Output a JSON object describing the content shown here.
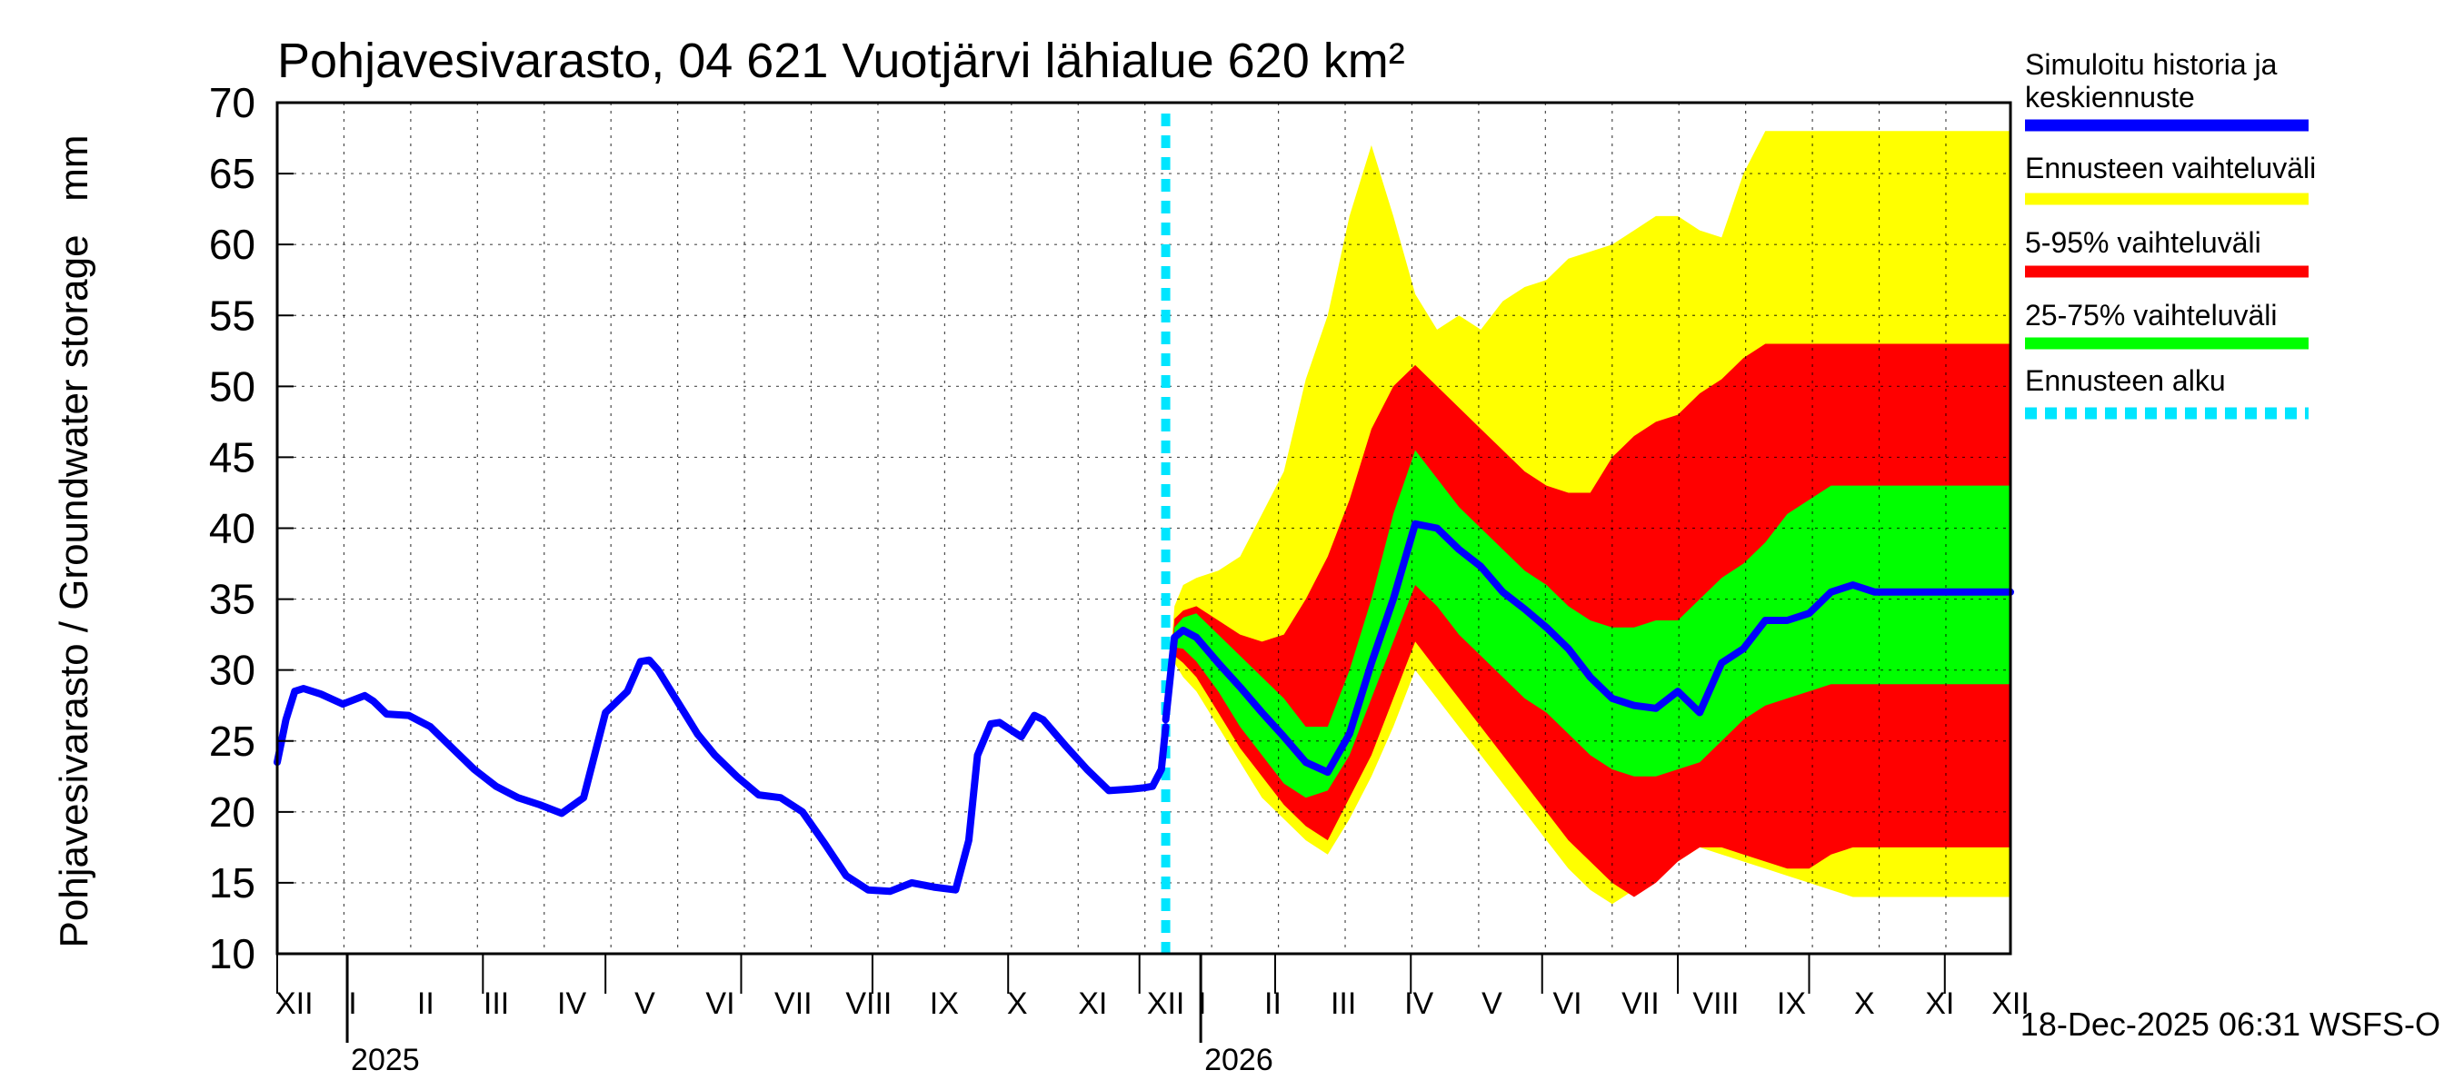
{
  "chart_data": {
    "type": "area",
    "title": "Pohjavesivarasto, 04 621 Vuotjärvi lähialue 620 km²",
    "ylabel": "Pohjavesivarasto / Groundwater storage   mm",
    "ylim": [
      10,
      70
    ],
    "yticks": [
      10,
      15,
      20,
      25,
      30,
      35,
      40,
      45,
      50,
      55,
      60,
      65,
      70
    ],
    "x_range_days": [
      0,
      396
    ],
    "month_labels": [
      "XII",
      "I",
      "II",
      "III",
      "IV",
      "V",
      "VI",
      "VII",
      "VIII",
      "IX",
      "X",
      "XI",
      "XII",
      "I",
      "II",
      "III",
      "IV",
      "V",
      "VI",
      "VII",
      "VIII",
      "IX",
      "X",
      "XI",
      "XII"
    ],
    "month_starts_days": [
      0,
      16,
      47,
      75,
      106,
      136,
      167,
      197,
      228,
      259,
      289,
      320,
      350,
      381
    ],
    "month_label_days": [
      7,
      31,
      61,
      90,
      121,
      151,
      182,
      212,
      243,
      274,
      304,
      335,
      365,
      380,
      409,
      438,
      469,
      499,
      530,
      560,
      591,
      622,
      652,
      683,
      712
    ],
    "year_labels": [
      {
        "text": "2025",
        "day": 16
      },
      {
        "text": "2026",
        "day": 211
      }
    ],
    "forecast_start_day": 203,
    "simulated_history": {
      "days": [
        0,
        2,
        4,
        6,
        8,
        10,
        15,
        20,
        22,
        25,
        30,
        35,
        40,
        45,
        50,
        55,
        60,
        65,
        70,
        75,
        80,
        83,
        85,
        87,
        90,
        93,
        96,
        100,
        105,
        110,
        115,
        120,
        125,
        130,
        135,
        140,
        145,
        150,
        155,
        158,
        160,
        163,
        165,
        167,
        170,
        173,
        175,
        180,
        185,
        190,
        195,
        198,
        200,
        202,
        203
      ],
      "values": [
        23.5,
        26.5,
        28.5,
        28.7,
        28.5,
        28.3,
        27.6,
        28.2,
        27.8,
        26.9,
        26.8,
        26.0,
        24.5,
        23.0,
        21.8,
        21.0,
        20.5,
        19.9,
        21.0,
        27.0,
        28.5,
        30.6,
        30.7,
        30.0,
        28.5,
        27.0,
        25.5,
        24.0,
        22.5,
        21.2,
        21.0,
        20.0,
        17.8,
        15.5,
        14.5,
        14.4,
        15.0,
        14.7,
        14.5,
        18.0,
        24.0,
        26.2,
        26.3,
        25.9,
        25.3,
        26.8,
        26.5,
        24.7,
        23.0,
        21.5,
        21.6,
        21.7,
        21.8,
        23.0,
        26.0
      ]
    },
    "forecast": {
      "days": [
        203,
        205,
        207,
        210,
        215,
        220,
        225,
        230,
        235,
        240,
        245,
        250,
        255,
        260,
        265,
        270,
        275,
        280,
        285,
        290,
        295,
        300,
        305,
        310,
        315,
        320,
        325,
        330,
        335,
        340,
        345,
        350,
        355,
        360,
        365,
        370,
        375,
        380,
        385,
        390,
        396
      ],
      "median": [
        26.5,
        32.3,
        32.8,
        32.3,
        30.5,
        28.8,
        27.0,
        25.3,
        23.5,
        22.8,
        25.5,
        30.5,
        35.0,
        40.3,
        40.0,
        38.5,
        37.3,
        35.5,
        34.3,
        33.0,
        31.5,
        29.5,
        28.0,
        27.5,
        27.3,
        28.5,
        27.0,
        30.5,
        31.5,
        33.5,
        33.5,
        34.0,
        35.5,
        36.0,
        35.5,
        35.5,
        35.5,
        35.5,
        35.5,
        35.5,
        35.5
      ],
      "p25": [
        26.5,
        31.6,
        31.5,
        30.6,
        28.5,
        26.0,
        24.0,
        22.0,
        21.0,
        21.5,
        24.0,
        28.0,
        32.0,
        36.0,
        34.5,
        32.5,
        31.0,
        29.5,
        28.0,
        27.0,
        25.5,
        24.0,
        23.0,
        22.5,
        22.5,
        23.0,
        23.5,
        25.0,
        26.5,
        27.5,
        28.0,
        28.5,
        29.0,
        29.0,
        29.0,
        29.0,
        29.0,
        29.0,
        29.0,
        29.0,
        29.0
      ],
      "p75": [
        26.5,
        33.0,
        33.7,
        34.0,
        32.5,
        31.0,
        29.5,
        28.0,
        26.0,
        26.0,
        30.0,
        35.0,
        41.0,
        45.5,
        43.5,
        41.5,
        40.0,
        38.5,
        37.0,
        36.0,
        34.5,
        33.5,
        33.0,
        33.0,
        33.5,
        33.5,
        35.0,
        36.5,
        37.5,
        39.0,
        41.0,
        42.0,
        43.0,
        43.0,
        43.0,
        43.0,
        43.0,
        43.0,
        43.0,
        43.0,
        43.0
      ],
      "p5": [
        26.5,
        31.0,
        30.5,
        29.5,
        27.0,
        24.5,
        22.5,
        20.5,
        19.0,
        18.0,
        21.0,
        24.0,
        28.0,
        32.0,
        30.0,
        28.0,
        26.0,
        24.0,
        22.0,
        20.0,
        18.0,
        16.5,
        15.0,
        14.0,
        15.0,
        16.5,
        17.5,
        17.5,
        17.0,
        16.5,
        16.0,
        16.0,
        17.0,
        17.5,
        17.5,
        17.5,
        17.5,
        17.5,
        17.5,
        17.5,
        17.5
      ],
      "p95": [
        26.5,
        33.6,
        34.2,
        34.5,
        33.5,
        32.5,
        32.0,
        32.5,
        35.0,
        38.0,
        42.0,
        47.0,
        50.0,
        51.5,
        50.0,
        48.5,
        47.0,
        45.5,
        44.0,
        43.0,
        42.5,
        42.5,
        45.0,
        46.5,
        47.5,
        48.0,
        49.5,
        50.5,
        52.0,
        53.0,
        53.0,
        53.0,
        53.0,
        53.0,
        53.0,
        53.0,
        53.0,
        53.0,
        53.0,
        53.0,
        53.0
      ],
      "min": [
        26.5,
        30.5,
        29.5,
        28.5,
        26.0,
        23.5,
        21.0,
        19.5,
        18.0,
        17.0,
        19.5,
        22.5,
        26.0,
        30.0,
        28.0,
        26.0,
        24.0,
        22.0,
        20.0,
        18.0,
        16.0,
        14.5,
        13.5,
        14.5,
        15.5,
        16.5,
        17.5,
        17.0,
        16.5,
        16.0,
        15.5,
        15.0,
        14.5,
        14.0,
        14.0,
        14.0,
        14.0,
        14.0,
        14.0,
        14.0,
        14.0
      ],
      "max": [
        26.5,
        34.5,
        36.0,
        36.5,
        37.0,
        38.0,
        41.0,
        44.0,
        50.5,
        55.0,
        62.0,
        67.0,
        62.0,
        56.5,
        54.0,
        55.0,
        54.0,
        56.0,
        57.0,
        57.5,
        59.0,
        59.5,
        60.0,
        61.0,
        62.0,
        62.0,
        61.0,
        60.5,
        65.0,
        68.0,
        68.0,
        68.0,
        68.0,
        68.0,
        68.0,
        68.0,
        68.0,
        68.0,
        68.0,
        68.0,
        68.0
      ]
    },
    "legend": [
      {
        "label": "Simuloitu historia ja keskiennuste",
        "label_line1": "Simuloitu historia ja",
        "label_line2": "keskiennuste",
        "color": "#0000ff",
        "style": "solid"
      },
      {
        "label": "Ennusteen vaihteluväli",
        "color": "#ffff00",
        "style": "solid"
      },
      {
        "label": "5-95% vaihteluväli",
        "color": "#ff0000",
        "style": "solid"
      },
      {
        "label": "25-75% vaihteluväli",
        "color": "#00ff00",
        "style": "solid"
      },
      {
        "label": "Ennusteen alku",
        "color": "#00e5ff",
        "style": "dashed"
      }
    ],
    "legend_position": "right",
    "footer": "18-Dec-2025 06:31 WSFS-O"
  }
}
